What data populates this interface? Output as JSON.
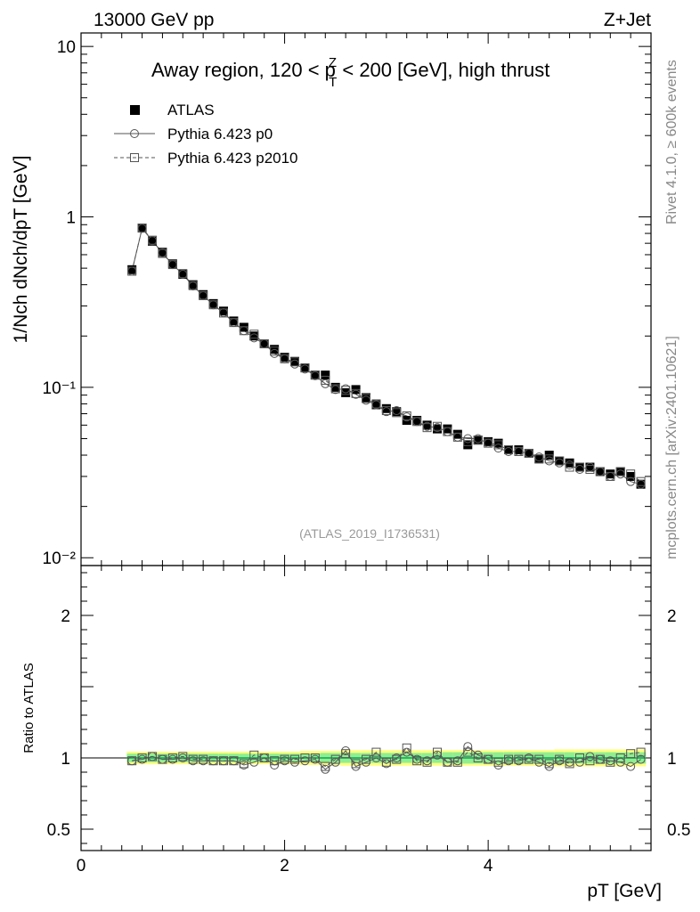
{
  "header": {
    "left_label": "13000 GeV pp",
    "right_label": "Z+Jet"
  },
  "side_labels": {
    "rivet": "Rivet 4.1.0, ≥ 600k events",
    "mcplots": "mcplots.cern.ch [arXiv:2401.10621]"
  },
  "chart_data": {
    "type": "scatter",
    "title": "Away region, 120 < pTZ < 200 [GeV], high thrust",
    "title_parts": {
      "pre": "Away region, 120 < p",
      "sup": "Z",
      "sub": "T",
      "post": " < 200 [GeV], high thrust"
    },
    "analysis_id": "(ATLAS_2019_I1736531)",
    "xlabel": "pT [GeV]",
    "ylabel": "1/Nch dNch/dpT [GeV]",
    "ratio_ylabel": "Ratio to ATLAS",
    "xlim": [
      0,
      5.6
    ],
    "ylim": [
      0.009,
      12
    ],
    "yscale": "log",
    "ratio_ylim": [
      0.35,
      2.35
    ],
    "x_ticks": [
      "0",
      "2",
      "4"
    ],
    "y_ticks": [
      "10",
      "1",
      "10⁻¹",
      "10⁻²"
    ],
    "ratio_ticks": [
      "2",
      "1",
      "0.5"
    ],
    "legend": [
      "ATLAS",
      "Pythia 6.423 p0",
      "Pythia 6.423 p2010"
    ],
    "legend_position": "top-left",
    "x": [
      0.5,
      0.6,
      0.7,
      0.8,
      0.9,
      1.0,
      1.1,
      1.2,
      1.3,
      1.4,
      1.5,
      1.6,
      1.7,
      1.8,
      1.9,
      2.0,
      2.1,
      2.2,
      2.3,
      2.4,
      2.5,
      2.6,
      2.7,
      2.8,
      2.9,
      3.0,
      3.1,
      3.2,
      3.3,
      3.4,
      3.5,
      3.6,
      3.7,
      3.8,
      3.9,
      4.0,
      4.1,
      4.2,
      4.3,
      4.4,
      4.5,
      4.6,
      4.7,
      4.8,
      4.9,
      5.0,
      5.1,
      5.2,
      5.3,
      5.4,
      5.5
    ],
    "series": [
      {
        "name": "ATLAS",
        "values": [
          0.49,
          0.86,
          0.72,
          0.62,
          0.53,
          0.46,
          0.4,
          0.35,
          0.31,
          0.28,
          0.245,
          0.225,
          0.2,
          0.18,
          0.167,
          0.15,
          0.142,
          0.13,
          0.118,
          0.118,
          0.1,
          0.093,
          0.097,
          0.087,
          0.079,
          0.075,
          0.072,
          0.064,
          0.064,
          0.06,
          0.057,
          0.057,
          0.053,
          0.046,
          0.049,
          0.048,
          0.047,
          0.043,
          0.043,
          0.041,
          0.038,
          0.04,
          0.037,
          0.036,
          0.034,
          0.034,
          0.032,
          0.031,
          0.032,
          0.03,
          0.027
        ]
      },
      {
        "name": "Pythia 6.423 p0",
        "values": [
          0.48,
          0.855,
          0.725,
          0.615,
          0.525,
          0.46,
          0.393,
          0.345,
          0.305,
          0.274,
          0.24,
          0.215,
          0.195,
          0.18,
          0.158,
          0.147,
          0.137,
          0.128,
          0.117,
          0.105,
          0.097,
          0.098,
          0.091,
          0.084,
          0.079,
          0.072,
          0.073,
          0.067,
          0.063,
          0.059,
          0.058,
          0.055,
          0.051,
          0.05,
          0.05,
          0.047,
          0.044,
          0.042,
          0.042,
          0.041,
          0.039,
          0.037,
          0.036,
          0.035,
          0.033,
          0.034,
          0.032,
          0.03,
          0.031,
          0.028,
          0.027
        ]
      },
      {
        "name": "Pythia 6.423 p2010",
        "values": [
          0.48,
          0.86,
          0.73,
          0.61,
          0.525,
          0.465,
          0.395,
          0.345,
          0.305,
          0.273,
          0.24,
          0.215,
          0.205,
          0.18,
          0.163,
          0.147,
          0.141,
          0.13,
          0.118,
          0.11,
          0.098,
          0.096,
          0.092,
          0.086,
          0.08,
          0.073,
          0.071,
          0.068,
          0.063,
          0.058,
          0.059,
          0.055,
          0.051,
          0.048,
          0.049,
          0.047,
          0.046,
          0.043,
          0.042,
          0.041,
          0.038,
          0.038,
          0.037,
          0.034,
          0.034,
          0.033,
          0.032,
          0.03,
          0.032,
          0.031,
          0.028
        ]
      }
    ],
    "ratio_series": [
      {
        "name": "Pythia 6.423 p0",
        "values": [
          0.98,
          0.99,
          1.01,
          0.99,
          0.99,
          1.0,
          0.98,
          0.98,
          0.98,
          0.98,
          0.98,
          0.95,
          0.97,
          1.0,
          0.95,
          0.98,
          0.97,
          0.98,
          0.99,
          0.92,
          0.97,
          1.05,
          0.94,
          0.97,
          1.0,
          0.96,
          1.0,
          1.04,
          0.99,
          0.98,
          1.02,
          0.97,
          0.98,
          1.08,
          1.02,
          0.99,
          0.95,
          0.98,
          0.98,
          1.0,
          0.97,
          0.94,
          0.98,
          0.97,
          0.97,
          1.01,
          0.99,
          0.98,
          0.97,
          0.94,
          0.99
        ]
      },
      {
        "name": "Pythia 6.423 p2010",
        "values": [
          0.98,
          1.0,
          1.01,
          0.99,
          1.0,
          1.01,
          0.99,
          0.99,
          0.98,
          0.98,
          0.98,
          0.96,
          1.02,
          1.0,
          0.98,
          0.99,
          0.99,
          1.0,
          1.0,
          0.94,
          0.99,
          1.03,
          0.96,
          0.99,
          1.04,
          0.97,
          0.99,
          1.07,
          0.98,
          0.97,
          1.04,
          0.97,
          0.97,
          1.04,
          1.0,
          0.99,
          0.97,
          0.99,
          0.99,
          0.99,
          0.99,
          0.96,
          0.99,
          0.96,
          1.0,
          0.98,
          0.99,
          0.97,
          1.0,
          1.03,
          1.04
        ]
      }
    ],
    "band_inner": [
      0.03,
      0.03,
      0.03,
      0.03,
      0.03,
      0.03,
      0.03,
      0.03,
      0.03,
      0.03,
      0.03,
      0.03,
      0.03,
      0.03,
      0.03,
      0.03,
      0.03,
      0.03,
      0.03,
      0.035,
      0.035,
      0.035,
      0.035,
      0.035,
      0.035,
      0.035,
      0.035,
      0.035,
      0.035,
      0.035,
      0.035,
      0.04,
      0.04,
      0.04,
      0.04,
      0.04,
      0.04,
      0.04,
      0.04,
      0.04,
      0.04,
      0.04,
      0.04,
      0.04,
      0.04,
      0.04,
      0.04,
      0.04,
      0.04,
      0.04,
      0.04
    ],
    "band_outer": [
      0.045,
      0.045,
      0.045,
      0.045,
      0.045,
      0.045,
      0.045,
      0.045,
      0.045,
      0.045,
      0.045,
      0.045,
      0.045,
      0.045,
      0.045,
      0.045,
      0.045,
      0.05,
      0.05,
      0.05,
      0.05,
      0.055,
      0.055,
      0.055,
      0.055,
      0.055,
      0.055,
      0.055,
      0.055,
      0.055,
      0.055,
      0.055,
      0.055,
      0.055,
      0.055,
      0.055,
      0.055,
      0.055,
      0.055,
      0.055,
      0.055,
      0.055,
      0.06,
      0.06,
      0.06,
      0.06,
      0.06,
      0.06,
      0.06,
      0.06,
      0.06
    ]
  },
  "colors": {
    "data": "#000000",
    "mc": "#555555",
    "band_inner": "#90ee90",
    "band_outer": "#ffff80",
    "ratio_line": "#00aa55",
    "side_text": "#888888"
  }
}
